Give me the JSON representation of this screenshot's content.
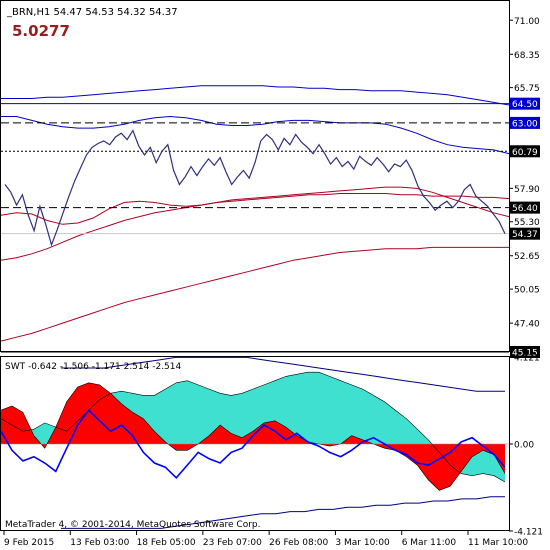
{
  "header": {
    "symbol_line": "_BRN,H1  54.47 54.53 54.32 54.37",
    "big_value": "5.0277",
    "big_value_color": "#9b1c1c"
  },
  "main_chart": {
    "y_ticks": [
      "71.00",
      "68.35",
      "65.75",
      "57.90",
      "55.30",
      "52.65",
      "50.05",
      "47.40"
    ],
    "y_range": [
      45.15,
      72.5
    ],
    "horizontal_levels": [
      {
        "value": 64.5,
        "label": "64.50",
        "style": "solid",
        "color": "#0000cc",
        "label_bg": "#0000cc"
      },
      {
        "value": 63.0,
        "label": "63.00",
        "style": "dashed",
        "color": "#000000",
        "label_bg": "#0000cc"
      },
      {
        "value": 60.79,
        "label": "60.79",
        "style": "dotted",
        "color": "#000000",
        "label_bg": "#000000"
      },
      {
        "value": 56.4,
        "label": "56.40",
        "style": "dashed",
        "color": "#000000",
        "label_bg": "#000000"
      },
      {
        "value": 54.37,
        "label": "54.37",
        "style": "solid",
        "color": "#c8c8c8",
        "label_bg": "#000000"
      },
      {
        "value": 45.15,
        "label": "45.15",
        "style": "solid",
        "color": "#000000",
        "label_bg": "#000000"
      }
    ],
    "series": {
      "price": [
        58.2,
        57.6,
        56.6,
        57.4,
        55.8,
        54.6,
        56.5,
        55.1,
        53.5,
        54.7,
        56.0,
        57.3,
        58.5,
        59.5,
        60.5,
        61.1,
        61.4,
        61.6,
        61.3,
        61.9,
        62.2,
        61.7,
        62.4,
        61.2,
        60.5,
        61.1,
        59.9,
        60.8,
        61.3,
        59.3,
        58.2,
        58.8,
        59.6,
        58.9,
        59.6,
        60.2,
        59.7,
        60.3,
        59.2,
        58.2,
        58.8,
        59.3,
        58.7,
        59.9,
        61.6,
        62.1,
        61.7,
        60.9,
        61.8,
        61.3,
        62.1,
        61.5,
        61.1,
        60.6,
        61.3,
        60.6,
        59.8,
        60.3,
        59.6,
        60.0,
        59.4,
        60.4,
        60.0,
        59.7,
        60.3,
        59.8,
        59.2,
        59.8,
        59.6,
        60.1,
        59.3,
        58.1,
        57.3,
        56.8,
        56.2,
        56.6,
        56.9,
        56.4,
        56.9,
        57.8,
        58.2,
        57.3,
        56.9,
        56.5,
        55.9,
        55.3,
        54.37
      ],
      "upper_band": [
        64.9,
        64.9,
        64.9,
        65.0,
        65.0,
        65.1,
        65.2,
        65.3,
        65.4,
        65.5,
        65.6,
        65.7,
        65.8,
        65.9,
        65.9,
        65.9,
        65.9,
        65.9,
        65.8,
        65.8,
        65.7,
        65.7,
        65.6,
        65.6,
        65.5,
        65.5,
        65.5,
        65.4,
        65.3,
        65.2,
        65.0,
        64.8,
        64.6,
        64.4
      ],
      "mid_upper": [
        63.5,
        63.5,
        63.2,
        62.9,
        62.7,
        62.6,
        62.6,
        62.7,
        62.9,
        63.2,
        63.4,
        63.5,
        63.4,
        63.2,
        62.9,
        62.8,
        62.8,
        62.9,
        63.1,
        63.2,
        63.2,
        63.1,
        63.0,
        63.0,
        63.0,
        62.9,
        62.6,
        62.2,
        61.7,
        61.3,
        61.1,
        61.0,
        60.9,
        60.6
      ],
      "mid_lower": [
        55.8,
        56.0,
        55.9,
        55.4,
        55.1,
        55.2,
        55.6,
        56.3,
        56.8,
        56.9,
        56.8,
        56.6,
        56.5,
        56.6,
        56.8,
        57.0,
        57.1,
        57.2,
        57.3,
        57.4,
        57.5,
        57.6,
        57.7,
        57.8,
        57.9,
        58.0,
        58.0,
        57.9,
        57.6,
        57.2,
        56.8,
        56.4,
        56.0,
        55.7
      ],
      "lower_band": [
        52.3,
        52.5,
        52.8,
        53.2,
        53.7,
        54.2,
        54.6,
        55.0,
        55.4,
        55.7,
        56.0,
        56.2,
        56.4,
        56.6,
        56.8,
        56.9,
        57.0,
        57.1,
        57.2,
        57.3,
        57.4,
        57.4,
        57.5,
        57.5,
        57.5,
        57.5,
        57.4,
        57.4,
        57.3,
        57.3,
        57.3,
        57.2,
        57.2,
        57.1
      ],
      "trend_low": [
        46.0,
        46.3,
        46.6,
        47.0,
        47.4,
        47.8,
        48.2,
        48.6,
        49.0,
        49.3,
        49.6,
        49.9,
        50.2,
        50.5,
        50.8,
        51.1,
        51.4,
        51.7,
        52.0,
        52.3,
        52.5,
        52.7,
        52.9,
        53.0,
        53.1,
        53.2,
        53.2,
        53.2,
        53.3,
        53.3,
        53.3,
        53.3,
        53.3,
        53.3
      ]
    }
  },
  "sub_chart": {
    "title": "SWT -0.642 -1.506 -1.171 2.514 -2.514",
    "y_ticks": [
      "4.121",
      "0.00",
      "-4.121"
    ],
    "y_range": [
      -4.121,
      4.121
    ],
    "colors": {
      "positive_fill": "#40e0d0",
      "negative_fill": "#ff0000",
      "line": "#0000ff",
      "envelope": "#000080"
    },
    "series": {
      "fill_top": [
        1.2,
        0.9,
        0.6,
        0.7,
        1.0,
        0.8,
        0.6,
        1.1,
        1.6,
        2.1,
        2.4,
        2.5,
        2.4,
        2.3,
        2.3,
        2.6,
        2.9,
        3.0,
        2.8,
        2.6,
        2.4,
        2.3,
        2.4,
        2.6,
        2.8,
        3.0,
        3.2,
        3.3,
        3.4,
        3.4,
        3.2,
        3.0,
        2.8,
        2.6,
        2.3,
        2.0,
        1.6,
        1.2,
        0.7,
        0.2,
        -0.4,
        -1.0,
        -1.4,
        -1.5,
        -1.4,
        -1.5,
        -1.8
      ],
      "red_overlay": [
        1.6,
        1.8,
        1.5,
        0.4,
        -0.2,
        0.8,
        2.0,
        2.7,
        2.9,
        2.8,
        2.4,
        1.9,
        1.5,
        1.2,
        0.6,
        0.1,
        -0.3,
        -0.3,
        0.0,
        0.4,
        0.9,
        0.5,
        0.3,
        0.6,
        1.0,
        1.1,
        0.8,
        0.4,
        0.1,
        0.0,
        -0.1,
        0.0,
        0.4,
        0.2,
        0.0,
        -0.2,
        -0.3,
        -0.6,
        -1.0,
        -1.7,
        -2.2,
        -2.0,
        -1.3,
        -0.6,
        -0.3,
        -0.5,
        -1.4
      ],
      "line": [
        0.6,
        -0.3,
        -0.8,
        -0.6,
        -0.9,
        -1.3,
        -0.2,
        0.9,
        1.6,
        1.1,
        0.6,
        0.9,
        0.4,
        -0.4,
        -0.9,
        -1.1,
        -1.6,
        -1.0,
        -0.4,
        -0.7,
        -0.9,
        -0.4,
        -0.2,
        0.4,
        0.9,
        0.6,
        0.2,
        0.5,
        0.1,
        -0.1,
        -0.4,
        -0.6,
        -0.3,
        0.1,
        0.3,
        0.0,
        -0.3,
        -0.5,
        -0.9,
        -1.0,
        -0.7,
        -0.4,
        0.1,
        0.3,
        -0.1,
        -0.5,
        -1.1
      ],
      "upper_env": [
        3.6,
        3.6,
        3.6,
        3.6,
        3.7,
        3.8,
        3.9,
        4.0,
        4.1,
        4.1,
        4.1,
        4.1,
        4.1,
        4.1,
        4.0,
        3.9,
        3.8,
        3.7,
        3.6,
        3.5,
        3.4,
        3.3,
        3.2,
        3.1,
        3.0,
        2.9,
        2.8,
        2.7,
        2.6,
        2.5,
        2.5,
        2.5
      ],
      "lower_env": [
        -4.0,
        -4.0,
        -4.0,
        -4.0,
        -4.0,
        -4.0,
        -4.0,
        -4.0,
        -3.9,
        -3.8,
        -3.7,
        -3.6,
        -3.5,
        -3.4,
        -3.3,
        -3.3,
        -3.2,
        -3.2,
        -3.1,
        -3.1,
        -3.0,
        -3.0,
        -2.9,
        -2.9,
        -2.8,
        -2.8,
        -2.7,
        -2.7,
        -2.6,
        -2.6,
        -2.5,
        -2.5
      ]
    }
  },
  "x_axis": {
    "labels": [
      "9 Feb 2015",
      "13 Feb 03:00",
      "18 Feb 05:00",
      "23 Feb 07:00",
      "26 Feb 08:00",
      "3 Mar 10:00",
      "6 Mar 11:00",
      "11 Mar 10:00"
    ]
  },
  "footer": {
    "copyright": "MetaTrader 4, © 2001-2014, MetaQuotes Software Corp."
  }
}
